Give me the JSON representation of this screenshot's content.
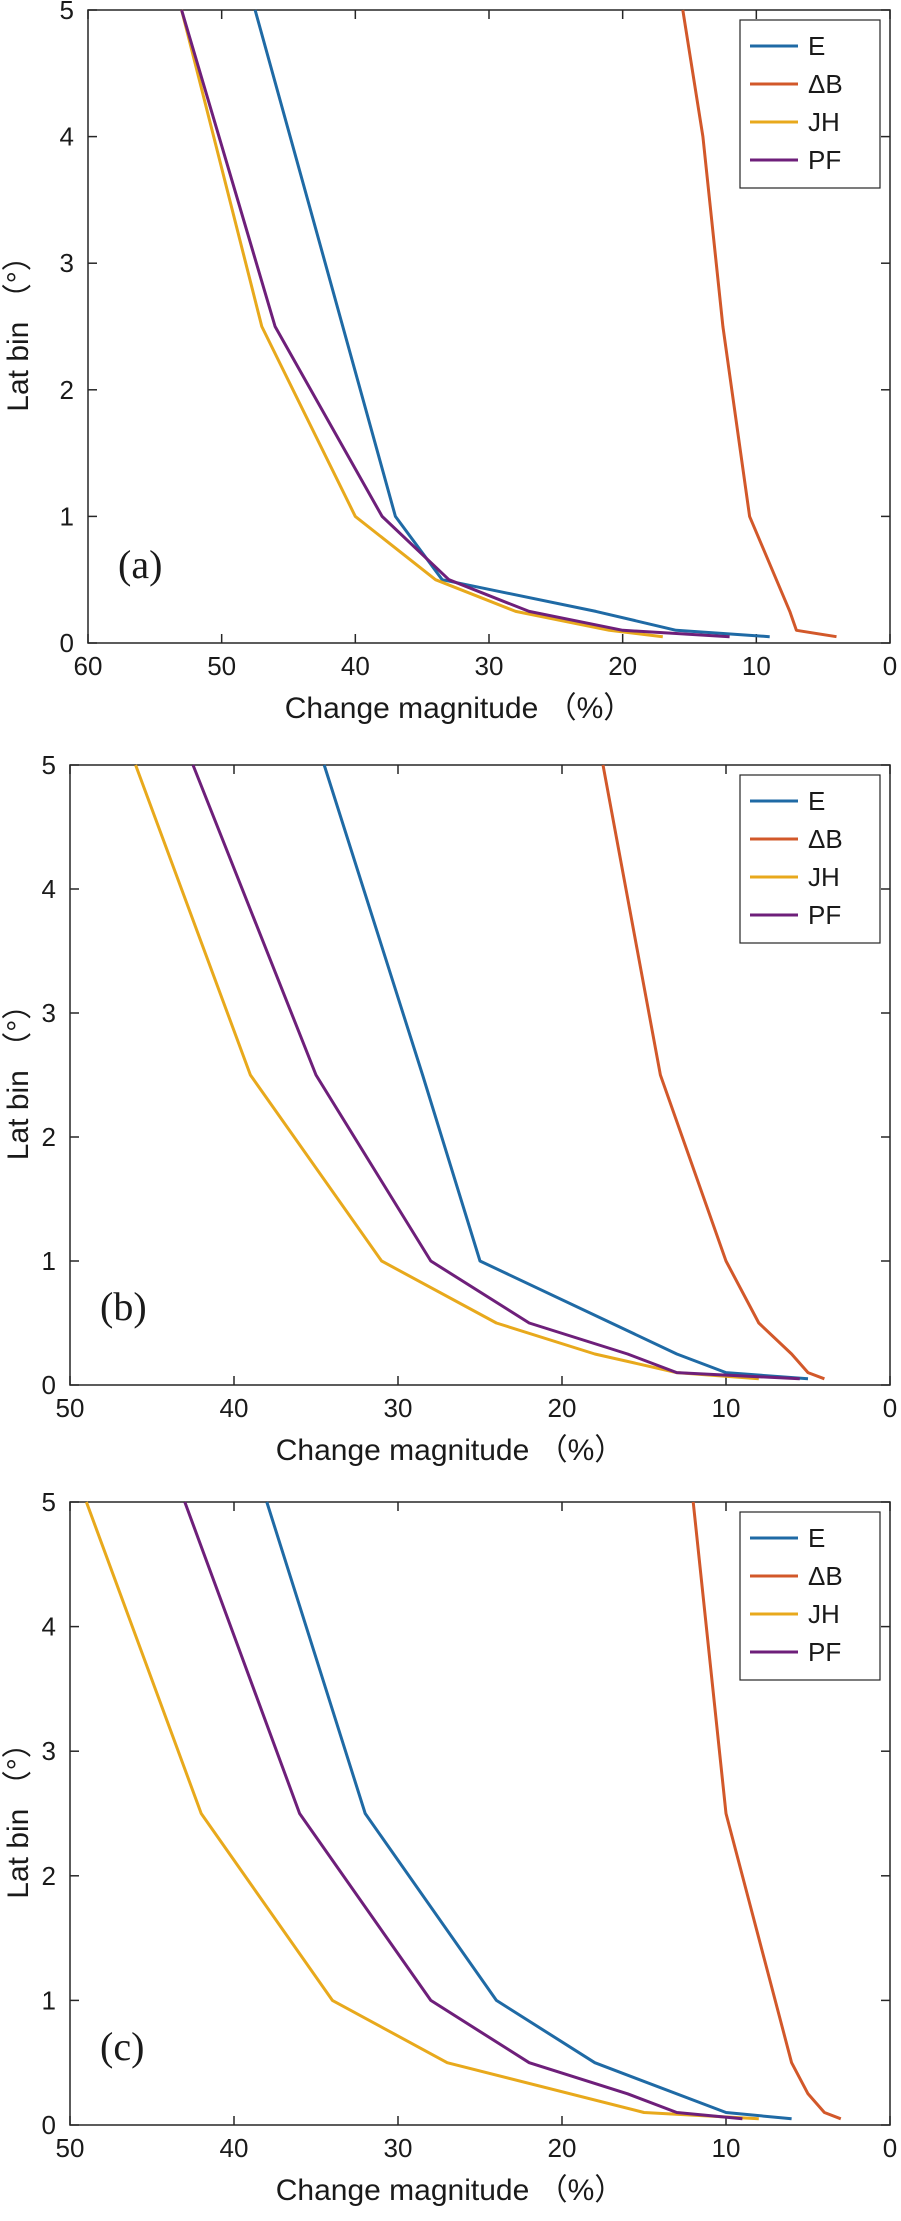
{
  "colors": {
    "E": "#1f6aa5",
    "ΔB": "#d2582a",
    "JH": "#e8a91c",
    "PF": "#6e1f7a"
  },
  "chart_data": [
    {
      "type": "line",
      "panel_label": "(a)",
      "xlabel": "Change magnitude （%）",
      "ylabel": "Lat bin （°）",
      "xlim": [
        60,
        0
      ],
      "ylim": [
        0,
        5
      ],
      "x_reversed": true,
      "xticks": [
        60,
        50,
        40,
        30,
        20,
        10,
        0
      ],
      "yticks": [
        0,
        1,
        2,
        3,
        4,
        5
      ],
      "legend_position": "top-right",
      "series": [
        {
          "name": "E",
          "x": [
            47.5,
            37,
            33.5,
            22,
            16,
            9
          ],
          "y": [
            5,
            1,
            0.5,
            0.25,
            0.1,
            0.05
          ]
        },
        {
          "name": "ΔB",
          "x": [
            15.5,
            14,
            12.5,
            10.5,
            7.5,
            7,
            4
          ],
          "y": [
            5,
            4,
            2.5,
            1,
            0.25,
            0.1,
            0.05
          ]
        },
        {
          "name": "JH",
          "x": [
            53,
            47,
            40,
            34,
            28,
            21,
            17
          ],
          "y": [
            5,
            2.5,
            1,
            0.5,
            0.25,
            0.1,
            0.05
          ]
        },
        {
          "name": "PF",
          "x": [
            53,
            46,
            38,
            33,
            27,
            20,
            12
          ],
          "y": [
            5,
            2.5,
            1,
            0.5,
            0.25,
            0.1,
            0.05
          ]
        }
      ]
    },
    {
      "type": "line",
      "panel_label": "(b)",
      "xlabel": "Change magnitude （%）",
      "ylabel": "Lat bin （°）",
      "xlim": [
        50,
        0
      ],
      "ylim": [
        0,
        5
      ],
      "x_reversed": true,
      "xticks": [
        50,
        40,
        30,
        20,
        10,
        0
      ],
      "yticks": [
        0,
        1,
        2,
        3,
        4,
        5
      ],
      "legend_position": "top-right",
      "series": [
        {
          "name": "E",
          "x": [
            34.5,
            28.5,
            25,
            13,
            10,
            5
          ],
          "y": [
            5,
            2.5,
            1,
            0.25,
            0.1,
            0.05
          ]
        },
        {
          "name": "ΔB",
          "x": [
            17.5,
            14,
            10,
            8,
            6,
            5,
            4
          ],
          "y": [
            5,
            2.5,
            1,
            0.5,
            0.25,
            0.1,
            0.05
          ]
        },
        {
          "name": "JH",
          "x": [
            46,
            39,
            31,
            24,
            18,
            13,
            8
          ],
          "y": [
            5,
            2.5,
            1,
            0.5,
            0.25,
            0.1,
            0.05
          ]
        },
        {
          "name": "PF",
          "x": [
            42.5,
            35,
            28,
            22,
            16,
            13,
            5.5
          ],
          "y": [
            5,
            2.5,
            1,
            0.5,
            0.25,
            0.1,
            0.05
          ]
        }
      ]
    },
    {
      "type": "line",
      "panel_label": "(c)",
      "xlabel": "Change magnitude （%）",
      "ylabel": "Lat bin （°）",
      "xlim": [
        50,
        0
      ],
      "ylim": [
        0,
        5
      ],
      "x_reversed": true,
      "xticks": [
        50,
        40,
        30,
        20,
        10,
        0
      ],
      "yticks": [
        0,
        1,
        2,
        3,
        4,
        5
      ],
      "legend_position": "top-right",
      "series": [
        {
          "name": "E",
          "x": [
            38,
            32,
            24,
            18,
            10,
            6
          ],
          "y": [
            5,
            2.5,
            1,
            0.5,
            0.1,
            0.05
          ]
        },
        {
          "name": "ΔB",
          "x": [
            12,
            10,
            6,
            5,
            4,
            3
          ],
          "y": [
            5,
            2.5,
            0.5,
            0.25,
            0.1,
            0.05
          ]
        },
        {
          "name": "JH",
          "x": [
            49,
            42,
            34,
            27,
            15,
            8
          ],
          "y": [
            5,
            2.5,
            1,
            0.5,
            0.1,
            0.05
          ]
        },
        {
          "name": "PF",
          "x": [
            43,
            36,
            28,
            22,
            16,
            13,
            9
          ],
          "y": [
            5,
            2.5,
            1,
            0.5,
            0.25,
            0.1,
            0.05
          ]
        }
      ]
    }
  ]
}
